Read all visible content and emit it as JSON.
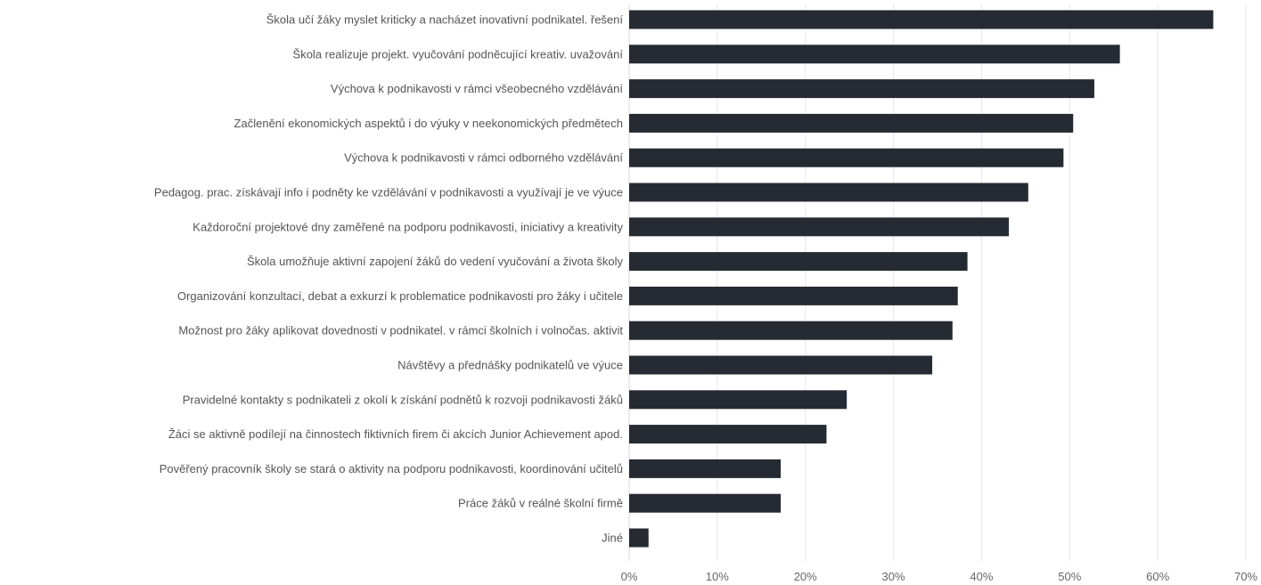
{
  "chart_data": {
    "type": "bar",
    "orientation": "horizontal",
    "title": "",
    "xlabel": "",
    "ylabel": "",
    "xlim": [
      0,
      70
    ],
    "x_ticks": [
      "0%",
      "10%",
      "20%",
      "30%",
      "40%",
      "50%",
      "60%",
      "70%"
    ],
    "grid": true,
    "legend": "none",
    "bar_color": "#252a33",
    "categories": [
      "Škola učí žáky myslet kriticky a nacházet inovativní podnikatel. řešení",
      "Škola realizuje projekt. vyučování podněcující kreativ. uvažování",
      "Výchova k podnikavosti v rámci všeobecného vzdělávání",
      "Začlenění ekonomických aspektů i do výuky v neekonomických předmětech",
      "Výchova k podnikavosti v rámci odborného vzdělávání",
      "Pedagog. prac. získávají info i podněty ke vzdělávání v podnikavosti a využívají je ve výuce",
      "Každoroční projektové dny zaměřené na podporu podnikavosti, iniciativy a kreativity",
      "Škola umožňuje aktivní zapojení žáků do vedení vyučování a života školy",
      "Organizování konzultací, debat a exkurzí k problematice podnikavosti pro žáky i učitele",
      "Možnost pro žáky aplikovat dovednosti v podnikatel. v rámci školních i volnočas. aktivit",
      "Návštěvy a přednášky podnikatelů ve výuce",
      "Pravidelné kontakty s podnikateli z okolí k získání podnětů k rozvoji podnikavosti žáků",
      "Žáci se aktivně podílejí na činnostech fiktivních firem či akcích Junior Achievement apod.",
      "Pověřený pracovník školy se stará o aktivity na podporu podnikavosti, koordinování učitelů",
      "Práce žáků v reálné školní firmě",
      "Jiné"
    ],
    "values": [
      66.3,
      55.7,
      52.8,
      50.4,
      49.3,
      45.3,
      43.1,
      38.4,
      37.3,
      36.7,
      34.4,
      24.7,
      22.4,
      17.2,
      17.2,
      2.2
    ]
  }
}
